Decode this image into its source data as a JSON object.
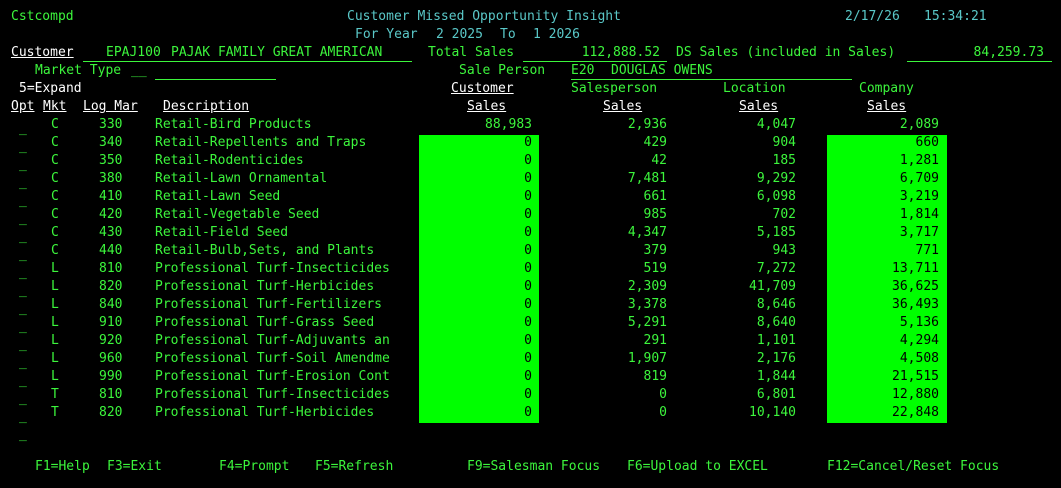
{
  "header": {
    "program": "Cstcompd",
    "title": "Customer Missed Opportunity Insight",
    "date": "2/17/26",
    "time": "15:34:21",
    "period_prefix": "For Year",
    "from_period": "2 2025",
    "to_label": "To",
    "to_period": "1 2026"
  },
  "info": {
    "customer_label": "Customer",
    "customer_code": "EPAJ100",
    "customer_name": "PAJAK FAMILY GREAT AMERICAN",
    "total_sales_label": "Total Sales",
    "total_sales": "112,888.52",
    "ds_label": "DS Sales (included in Sales)",
    "ds_sales": "84,259.73",
    "market_type_label": "Market Type",
    "market_type_code": "__",
    "market_type_desc": "",
    "sale_person_label": "Sale Person",
    "sale_person_code": "E20",
    "sale_person_name": "DOUGLAS OWENS",
    "expand_hint": "5=Expand"
  },
  "columns": {
    "opt": "Opt",
    "mkt": "Mkt",
    "logmar": "Log Mar",
    "desc": "Description",
    "cust_top": "Customer",
    "cust_bot": "Sales",
    "sp_top": "Salesperson",
    "sp_bot": "Sales",
    "loc_top": "Location",
    "loc_bot": "Sales",
    "co_top": "Company",
    "co_bot": "Sales"
  },
  "rows": [
    {
      "opt": "_",
      "mkt": "C",
      "logmar": "330",
      "desc": "Retail-Bird Products",
      "cust": "88,983",
      "sp": "2,936",
      "loc": "4,047",
      "co": "2,089",
      "hl_cust": false,
      "hl_co": false
    },
    {
      "opt": "_",
      "mkt": "C",
      "logmar": "340",
      "desc": "Retail-Repellents and Traps",
      "cust": "0",
      "sp": "429",
      "loc": "904",
      "co": "660",
      "hl_cust": true,
      "hl_co": true
    },
    {
      "opt": "_",
      "mkt": "C",
      "logmar": "350",
      "desc": "Retail-Rodenticides",
      "cust": "0",
      "sp": "42",
      "loc": "185",
      "co": "1,281",
      "hl_cust": true,
      "hl_co": true
    },
    {
      "opt": "_",
      "mkt": "C",
      "logmar": "380",
      "desc": "Retail-Lawn Ornamental",
      "cust": "0",
      "sp": "7,481",
      "loc": "9,292",
      "co": "6,709",
      "hl_cust": true,
      "hl_co": true
    },
    {
      "opt": "_",
      "mkt": "C",
      "logmar": "410",
      "desc": "Retail-Lawn Seed",
      "cust": "0",
      "sp": "661",
      "loc": "6,098",
      "co": "3,219",
      "hl_cust": true,
      "hl_co": true
    },
    {
      "opt": "_",
      "mkt": "C",
      "logmar": "420",
      "desc": "Retail-Vegetable Seed",
      "cust": "0",
      "sp": "985",
      "loc": "702",
      "co": "1,814",
      "hl_cust": true,
      "hl_co": true
    },
    {
      "opt": "_",
      "mkt": "C",
      "logmar": "430",
      "desc": "Retail-Field Seed",
      "cust": "0",
      "sp": "4,347",
      "loc": "5,185",
      "co": "3,717",
      "hl_cust": true,
      "hl_co": true
    },
    {
      "opt": "_",
      "mkt": "C",
      "logmar": "440",
      "desc": "Retail-Bulb,Sets, and Plants",
      "cust": "0",
      "sp": "379",
      "loc": "943",
      "co": "771",
      "hl_cust": true,
      "hl_co": true
    },
    {
      "opt": "_",
      "mkt": "L",
      "logmar": "810",
      "desc": "Professional Turf-Insecticides",
      "cust": "0",
      "sp": "519",
      "loc": "7,272",
      "co": "13,711",
      "hl_cust": true,
      "hl_co": true
    },
    {
      "opt": "_",
      "mkt": "L",
      "logmar": "820",
      "desc": "Professional Turf-Herbicides",
      "cust": "0",
      "sp": "2,309",
      "loc": "41,709",
      "co": "36,625",
      "hl_cust": true,
      "hl_co": true
    },
    {
      "opt": "_",
      "mkt": "L",
      "logmar": "840",
      "desc": "Professional Turf-Fertilizers",
      "cust": "0",
      "sp": "3,378",
      "loc": "8,646",
      "co": "36,493",
      "hl_cust": true,
      "hl_co": true
    },
    {
      "opt": "_",
      "mkt": "L",
      "logmar": "910",
      "desc": "Professional Turf-Grass Seed",
      "cust": "0",
      "sp": "5,291",
      "loc": "8,640",
      "co": "5,136",
      "hl_cust": true,
      "hl_co": true
    },
    {
      "opt": "_",
      "mkt": "L",
      "logmar": "920",
      "desc": "Professional Turf-Adjuvants an",
      "cust": "0",
      "sp": "291",
      "loc": "1,101",
      "co": "4,294",
      "hl_cust": true,
      "hl_co": true
    },
    {
      "opt": "_",
      "mkt": "L",
      "logmar": "960",
      "desc": "Professional Turf-Soil Amendme",
      "cust": "0",
      "sp": "1,907",
      "loc": "2,176",
      "co": "4,508",
      "hl_cust": true,
      "hl_co": true
    },
    {
      "opt": "_",
      "mkt": "L",
      "logmar": "990",
      "desc": "Professional Turf-Erosion Cont",
      "cust": "0",
      "sp": "819",
      "loc": "1,844",
      "co": "21,515",
      "hl_cust": true,
      "hl_co": true
    },
    {
      "opt": "_",
      "mkt": "T",
      "logmar": "810",
      "desc": "Professional Turf-Insecticides",
      "cust": "0",
      "sp": "0",
      "loc": "6,801",
      "co": "12,880",
      "hl_cust": true,
      "hl_co": true
    },
    {
      "opt": "_",
      "mkt": "T",
      "logmar": "820",
      "desc": "Professional Turf-Herbicides",
      "cust": "0",
      "sp": "0",
      "loc": "10,140",
      "co": "22,848",
      "hl_cust": true,
      "hl_co": true
    },
    {
      "opt": "_",
      "mkt": "",
      "logmar": "",
      "desc": "",
      "cust": "",
      "sp": "",
      "loc": "",
      "co": "",
      "hl_cust": false,
      "hl_co": false
    }
  ],
  "fkeys": [
    "F1=Help",
    "F3=Exit",
    "F4=Prompt",
    "F5=Refresh",
    "F9=Salesman Focus",
    "F6=Upload to EXCEL",
    "F12=Cancel/Reset Focus"
  ],
  "colors": {
    "background": "#000000",
    "text_green": "#3cf53c",
    "text_cyan": "#5ac8c8",
    "text_white": "#ffffff",
    "highlight": "#00ff00"
  }
}
